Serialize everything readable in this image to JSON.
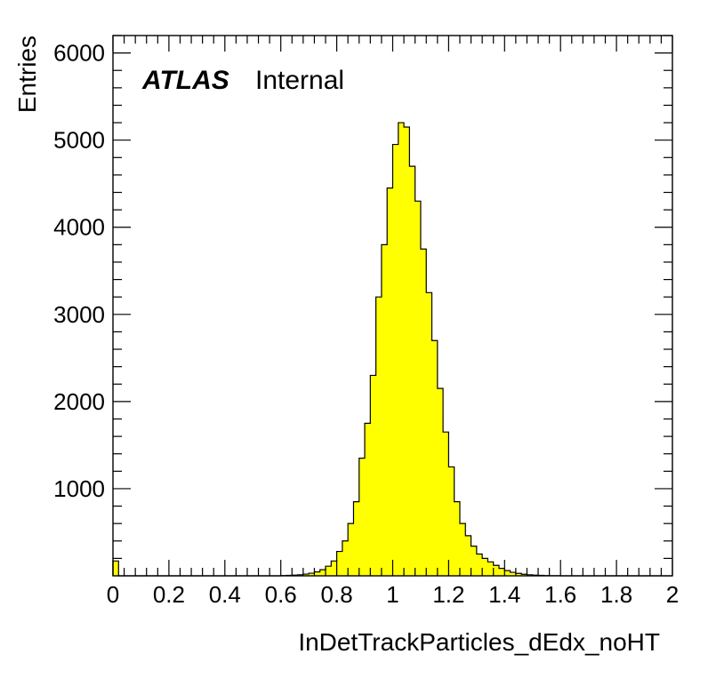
{
  "chart_data": {
    "type": "bar",
    "style": "histogram",
    "xlabel": "InDetTrackParticles_dEdx_noHT",
    "ylabel": "Entries",
    "xlim": [
      0,
      2
    ],
    "ylim": [
      0,
      6200
    ],
    "x_ticks": [
      "0",
      "0.2",
      "0.4",
      "0.6",
      "0.8",
      "1",
      "1.2",
      "1.4",
      "1.6",
      "1.8",
      "2"
    ],
    "y_ticks": [
      "1000",
      "2000",
      "3000",
      "4000",
      "5000",
      "6000"
    ],
    "fill_color": "#ffff00",
    "line_color": "#000000",
    "bin_width": 0.02,
    "bin_starts": [
      0.0,
      0.02,
      0.04,
      0.06,
      0.08,
      0.1,
      0.12,
      0.14,
      0.16,
      0.18,
      0.2,
      0.22,
      0.24,
      0.26,
      0.28,
      0.3,
      0.32,
      0.34,
      0.36,
      0.38,
      0.4,
      0.42,
      0.44,
      0.46,
      0.48,
      0.5,
      0.52,
      0.54,
      0.56,
      0.58,
      0.6,
      0.62,
      0.64,
      0.66,
      0.68,
      0.7,
      0.72,
      0.74,
      0.76,
      0.78,
      0.8,
      0.82,
      0.84,
      0.86,
      0.88,
      0.9,
      0.92,
      0.94,
      0.96,
      0.98,
      1.0,
      1.02,
      1.04,
      1.06,
      1.08,
      1.1,
      1.12,
      1.14,
      1.16,
      1.18,
      1.2,
      1.22,
      1.24,
      1.26,
      1.28,
      1.3,
      1.32,
      1.34,
      1.36,
      1.38,
      1.4,
      1.42,
      1.44,
      1.46,
      1.48,
      1.5,
      1.52,
      1.54,
      1.56,
      1.58,
      1.6,
      1.62,
      1.64,
      1.66,
      1.68,
      1.7,
      1.72,
      1.74,
      1.76,
      1.78,
      1.8,
      1.82,
      1.84,
      1.86,
      1.88,
      1.9,
      1.92,
      1.94,
      1.96,
      1.98
    ],
    "values": [
      170,
      0,
      0,
      0,
      0,
      0,
      0,
      0,
      0,
      0,
      0,
      0,
      0,
      0,
      0,
      0,
      0,
      0,
      0,
      0,
      0,
      0,
      0,
      0,
      0,
      0,
      0,
      0,
      0,
      0,
      3,
      5,
      8,
      12,
      20,
      30,
      45,
      70,
      110,
      170,
      280,
      400,
      600,
      850,
      1350,
      1750,
      2300,
      3200,
      3800,
      4450,
      4950,
      5200,
      5150,
      4700,
      4300,
      3750,
      3250,
      2700,
      2150,
      1650,
      1250,
      850,
      600,
      460,
      340,
      250,
      200,
      160,
      120,
      85,
      60,
      40,
      28,
      18,
      12,
      8,
      5,
      3,
      2,
      1,
      0,
      0,
      0,
      0,
      0,
      0,
      0,
      0,
      0,
      0,
      0,
      0,
      0,
      0,
      0,
      0,
      0,
      0,
      0,
      0
    ]
  },
  "annotation": {
    "experiment": "ATLAS",
    "status": "Internal"
  }
}
